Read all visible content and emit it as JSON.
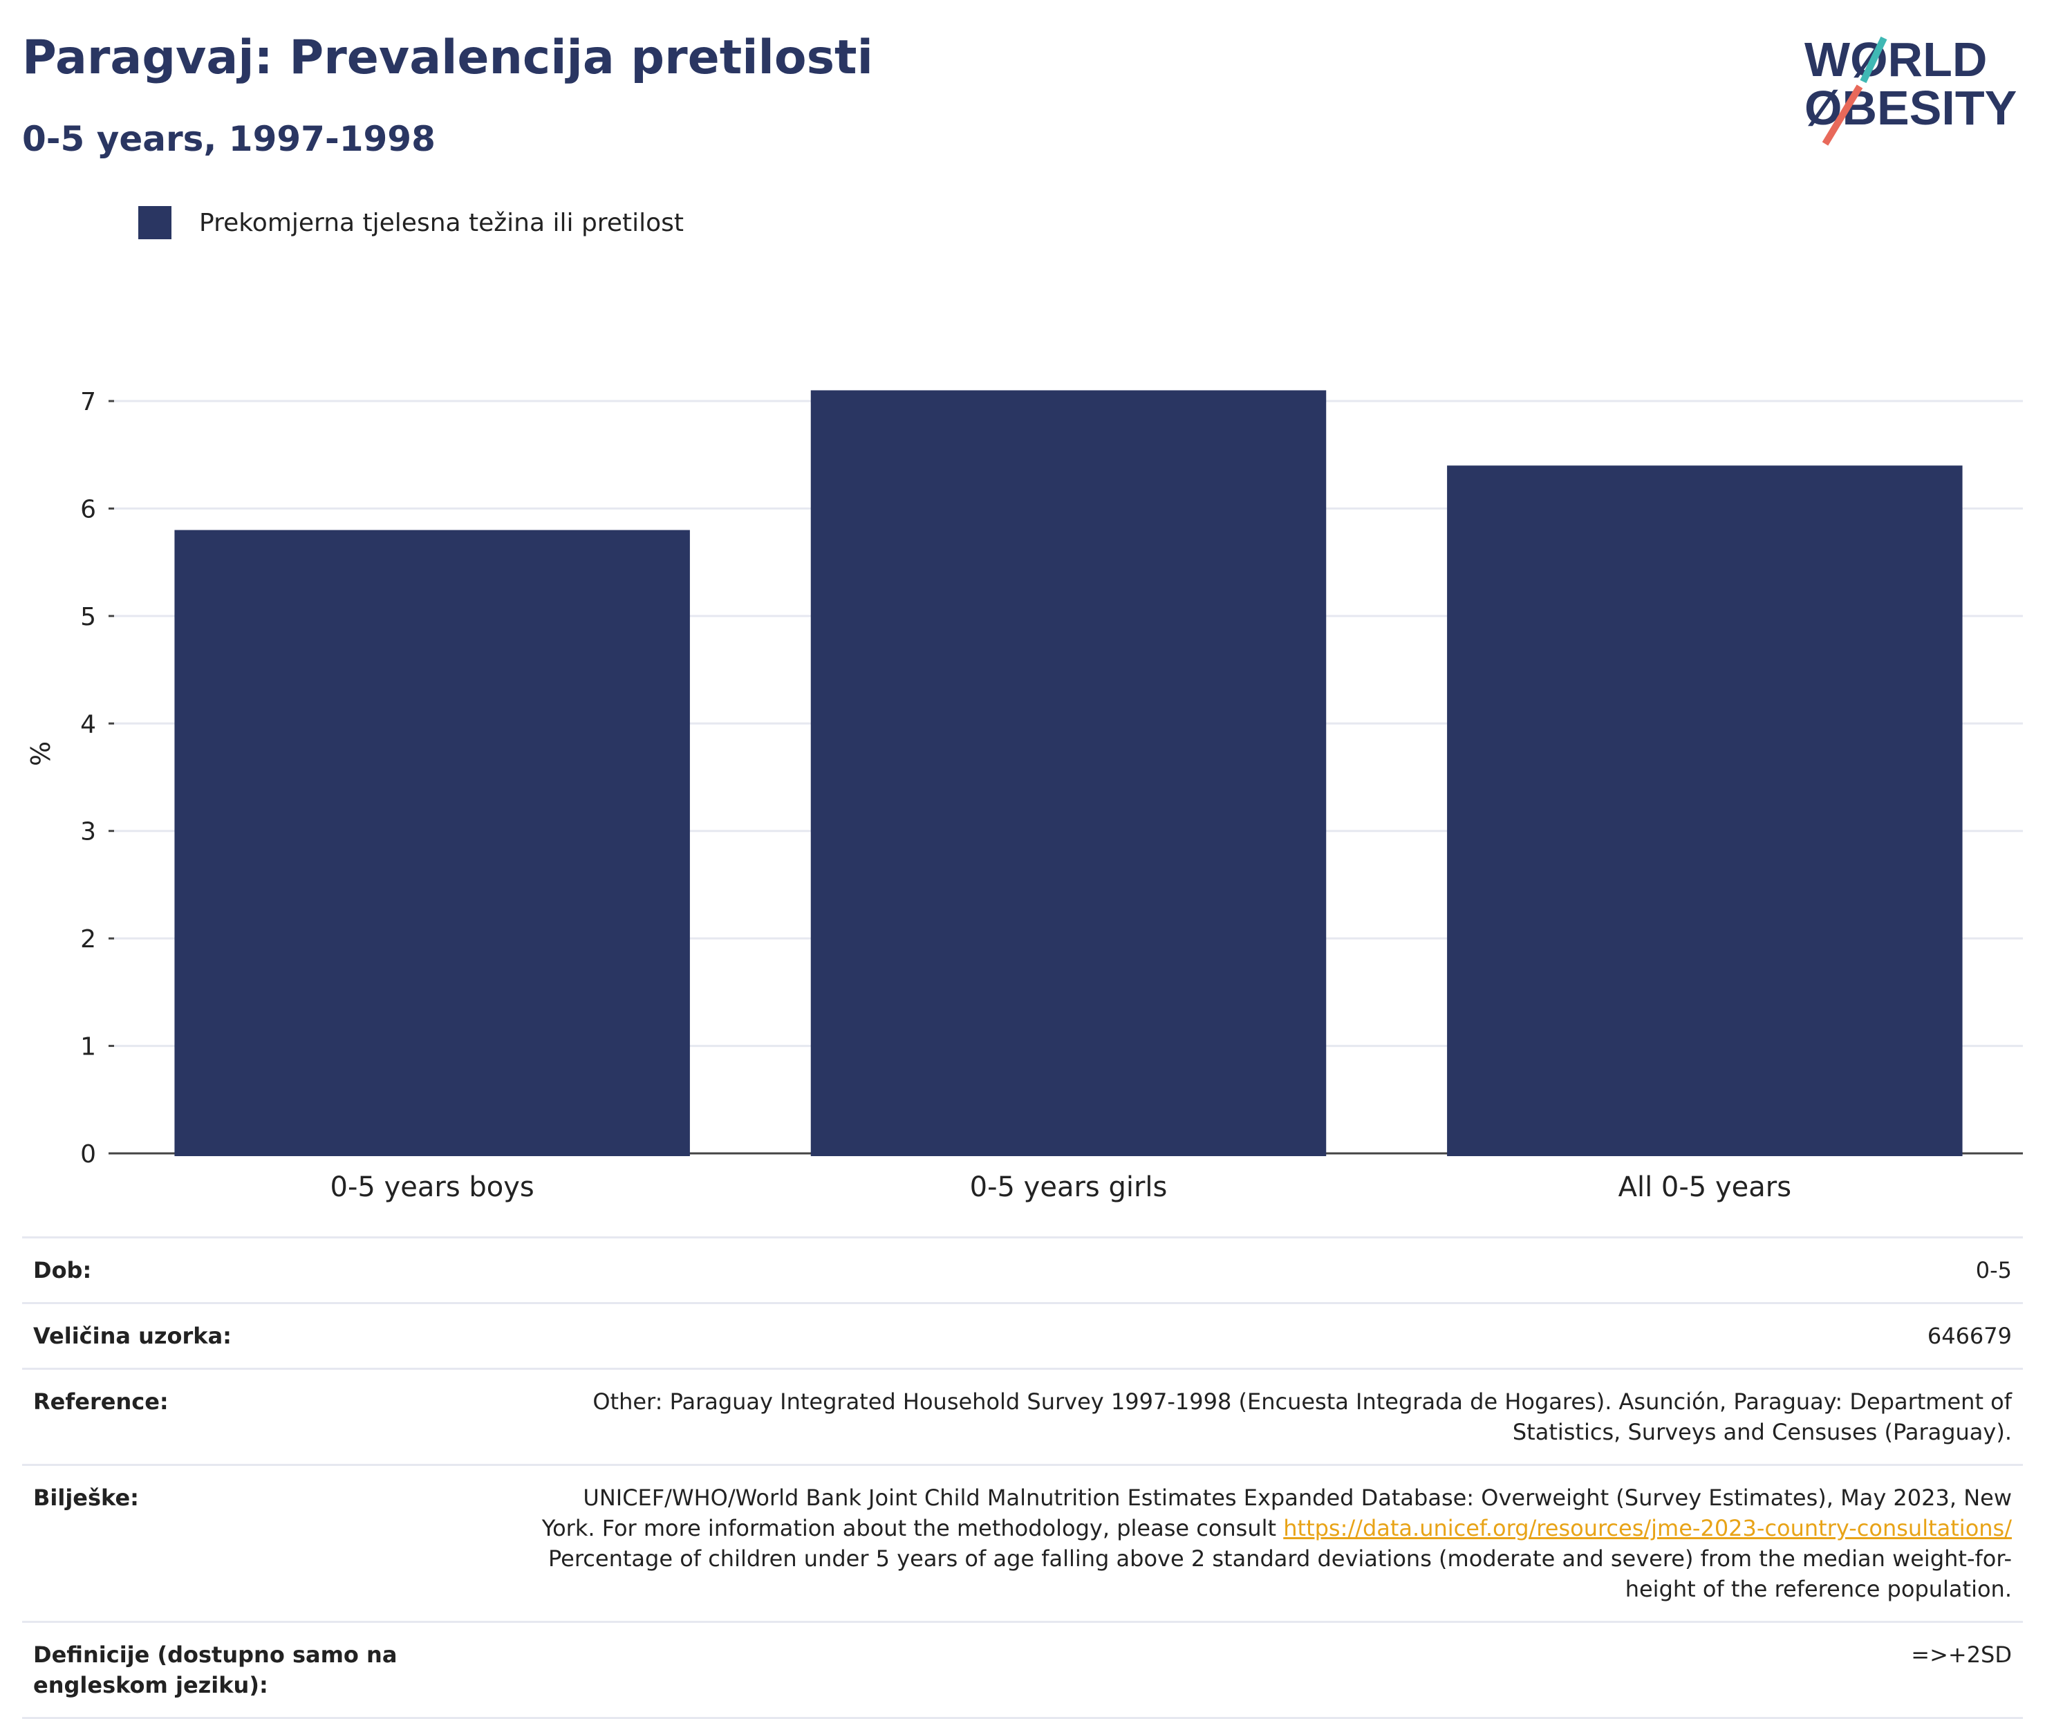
{
  "header": {
    "title": "Paragvaj: Prevalencija pretilosti",
    "subtitle": "0-5 years, 1997-1998"
  },
  "logo": {
    "line1": "WØRLD",
    "line2": "ØBESITY"
  },
  "legend": {
    "label": "Prekomjerna tjelesna težina ili pretilost",
    "color": "#2a3662"
  },
  "chart_data": {
    "type": "bar",
    "categories": [
      "0-5 years boys",
      "0-5 years girls",
      "All 0-5 years"
    ],
    "series": [
      {
        "name": "Prekomjerna tjelesna težina ili pretilost",
        "values": [
          5.8,
          7.1,
          6.4
        ],
        "color": "#2a3662"
      }
    ],
    "ylabel": "%",
    "ylim": [
      0,
      7.5
    ],
    "yticks": [
      0,
      1,
      2,
      3,
      4,
      5,
      6,
      7
    ],
    "grid": true,
    "legend_position": "top-left"
  },
  "info": {
    "dob_label": "Dob:",
    "dob_value": "0-5",
    "sample_label": "Veličina uzorka:",
    "sample_value": "646679",
    "reference_label": "Reference:",
    "reference_value": "Other: Paraguay Integrated Household Survey 1997-1998 (Encuesta Integrada de Hogares). Asunción, Paraguay: Department of Statistics, Surveys and Censuses (Paraguay).",
    "notes_label": "Bilješke:",
    "notes_text_1": "UNICEF/WHO/World Bank Joint Child Malnutrition Estimates Expanded Database: Overweight (Survey Estimates), May 2023, New York. For more information about the methodology, please consult ",
    "notes_link": "https://data.unicef.org/resources/jme-2023-country-consultations/",
    "notes_text_2": " Percentage of children under 5 years of age falling above 2 standard deviations (moderate and severe) from the median weight-for-height of the reference population.",
    "definitions_label": "Definicije (dostupno samo na engleskom jeziku):",
    "definitions_value": "=>+2SD"
  }
}
